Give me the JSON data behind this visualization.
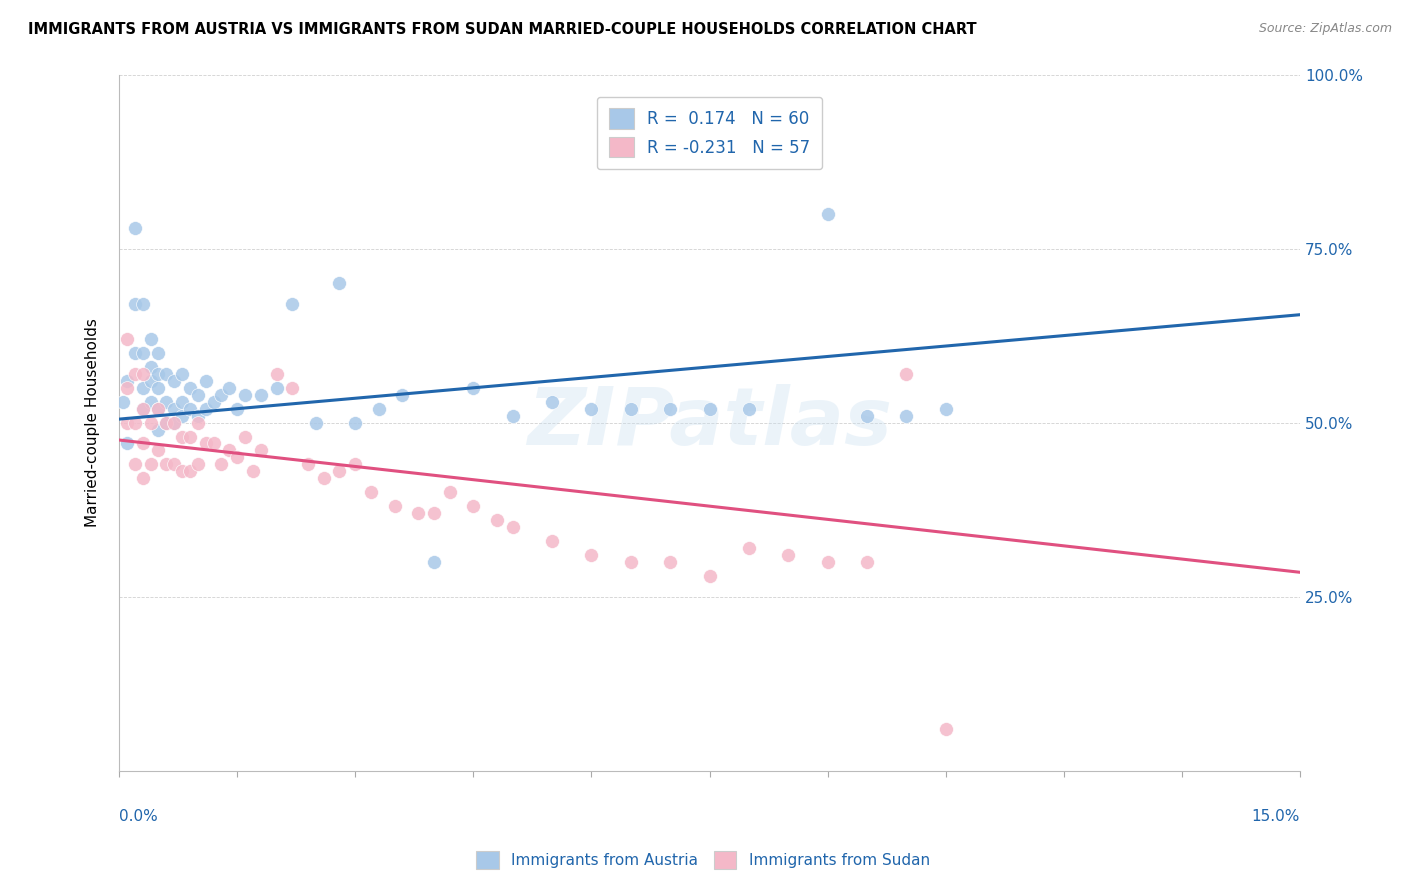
{
  "title": "IMMIGRANTS FROM AUSTRIA VS IMMIGRANTS FROM SUDAN MARRIED-COUPLE HOUSEHOLDS CORRELATION CHART",
  "source": "Source: ZipAtlas.com",
  "ylabel": "Married-couple Households",
  "austria_label": "Immigrants from Austria",
  "sudan_label": "Immigrants from Sudan",
  "watermark": "ZIPatlas",
  "blue_color": "#a8c8e8",
  "blue_line_color": "#2166ac",
  "pink_color": "#f4b8c8",
  "pink_line_color": "#e05080",
  "R_austria": 0.174,
  "N_austria": 60,
  "R_sudan": -0.231,
  "N_sudan": 57,
  "xlim": [
    0,
    0.15
  ],
  "ylim": [
    0,
    1.0
  ],
  "austria_x": [
    0.0005,
    0.001,
    0.001,
    0.002,
    0.002,
    0.002,
    0.003,
    0.003,
    0.003,
    0.003,
    0.004,
    0.004,
    0.004,
    0.004,
    0.005,
    0.005,
    0.005,
    0.005,
    0.005,
    0.006,
    0.006,
    0.006,
    0.007,
    0.007,
    0.007,
    0.008,
    0.008,
    0.008,
    0.009,
    0.009,
    0.01,
    0.01,
    0.011,
    0.011,
    0.012,
    0.013,
    0.014,
    0.015,
    0.016,
    0.018,
    0.02,
    0.022,
    0.025,
    0.028,
    0.03,
    0.033,
    0.036,
    0.04,
    0.045,
    0.05,
    0.055,
    0.06,
    0.065,
    0.07,
    0.075,
    0.08,
    0.09,
    0.095,
    0.1,
    0.105
  ],
  "austria_y": [
    0.53,
    0.47,
    0.56,
    0.6,
    0.67,
    0.78,
    0.52,
    0.55,
    0.6,
    0.67,
    0.53,
    0.56,
    0.58,
    0.62,
    0.49,
    0.52,
    0.55,
    0.57,
    0.6,
    0.5,
    0.53,
    0.57,
    0.5,
    0.52,
    0.56,
    0.51,
    0.53,
    0.57,
    0.52,
    0.55,
    0.51,
    0.54,
    0.52,
    0.56,
    0.53,
    0.54,
    0.55,
    0.52,
    0.54,
    0.54,
    0.55,
    0.67,
    0.5,
    0.7,
    0.5,
    0.52,
    0.54,
    0.3,
    0.55,
    0.51,
    0.53,
    0.52,
    0.52,
    0.52,
    0.52,
    0.52,
    0.8,
    0.51,
    0.51,
    0.52
  ],
  "sudan_x": [
    0.001,
    0.001,
    0.001,
    0.002,
    0.002,
    0.002,
    0.003,
    0.003,
    0.003,
    0.003,
    0.004,
    0.004,
    0.005,
    0.005,
    0.006,
    0.006,
    0.007,
    0.007,
    0.008,
    0.008,
    0.009,
    0.009,
    0.01,
    0.01,
    0.011,
    0.012,
    0.013,
    0.014,
    0.015,
    0.016,
    0.017,
    0.018,
    0.02,
    0.022,
    0.024,
    0.026,
    0.028,
    0.03,
    0.032,
    0.035,
    0.038,
    0.04,
    0.042,
    0.045,
    0.048,
    0.05,
    0.055,
    0.06,
    0.065,
    0.07,
    0.075,
    0.08,
    0.085,
    0.09,
    0.095,
    0.1,
    0.105
  ],
  "sudan_y": [
    0.5,
    0.55,
    0.62,
    0.44,
    0.5,
    0.57,
    0.42,
    0.47,
    0.52,
    0.57,
    0.44,
    0.5,
    0.46,
    0.52,
    0.44,
    0.5,
    0.44,
    0.5,
    0.43,
    0.48,
    0.43,
    0.48,
    0.44,
    0.5,
    0.47,
    0.47,
    0.44,
    0.46,
    0.45,
    0.48,
    0.43,
    0.46,
    0.57,
    0.55,
    0.44,
    0.42,
    0.43,
    0.44,
    0.4,
    0.38,
    0.37,
    0.37,
    0.4,
    0.38,
    0.36,
    0.35,
    0.33,
    0.31,
    0.3,
    0.3,
    0.28,
    0.32,
    0.31,
    0.3,
    0.3,
    0.57,
    0.06
  ]
}
